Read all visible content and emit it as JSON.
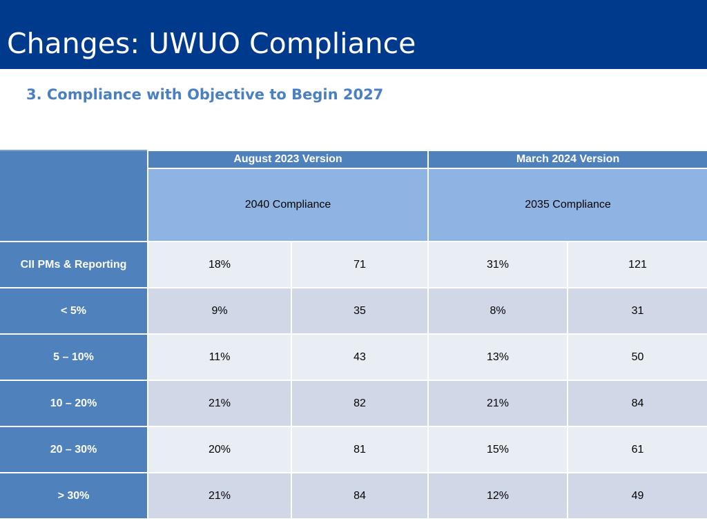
{
  "slide": {
    "title": "Changes: UWUO Compliance",
    "subtitle": "3. Compliance with Objective to Begin 2027"
  },
  "table": {
    "group_headers": [
      "August 2023 Version",
      "March 2024 Version"
    ],
    "sub_headers": [
      "2040 Compliance",
      "2035 Compliance"
    ],
    "rows": [
      {
        "label": "CII PMs & Reporting",
        "values": [
          "18%",
          "71",
          "31%",
          "121"
        ]
      },
      {
        "label": "< 5%",
        "values": [
          "9%",
          "35",
          "8%",
          "31"
        ]
      },
      {
        "label": "5 – 10%",
        "values": [
          "11%",
          "43",
          "13%",
          "50"
        ]
      },
      {
        "label": "10 – 20%",
        "values": [
          "21%",
          "82",
          "21%",
          "84"
        ]
      },
      {
        "label": "20 – 30%",
        "values": [
          "20%",
          "81",
          "15%",
          "61"
        ]
      },
      {
        "label": "> 30%",
        "values": [
          "21%",
          "84",
          "12%",
          "49"
        ]
      }
    ]
  },
  "colors": {
    "title_bar": "#003a8c",
    "subtitle_text": "#4a7fc0",
    "header_blue": "#4f81bd",
    "subheader_blue": "#8eb4e3",
    "row_light": "#e9edf4",
    "row_dark": "#d0d8e8"
  }
}
